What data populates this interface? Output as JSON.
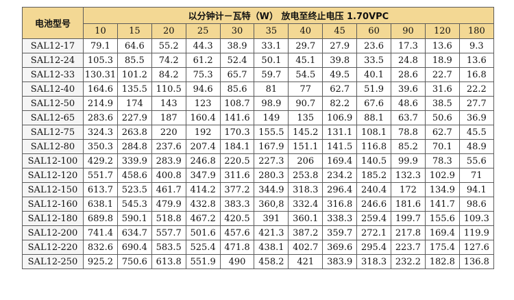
{
  "table": {
    "corner_label": "电池型号",
    "title": "以分钟计－瓦特（W）  放电至终止电压 1.70VPC",
    "minutes": [
      "10",
      "15",
      "20",
      "25",
      "30",
      "35",
      "40",
      "45",
      "60",
      "90",
      "120",
      "180"
    ],
    "rows": [
      {
        "model": "SAL12-17",
        "values": [
          "79.1",
          "64.6",
          "55.2",
          "44.3",
          "38.9",
          "33.1",
          "29.7",
          "27.9",
          "23.6",
          "17.3",
          "13.6",
          "9.3"
        ]
      },
      {
        "model": "SAL12-24",
        "values": [
          "105.3",
          "85.5",
          "74.2",
          "61.2",
          "52.4",
          "50.1",
          "45.1",
          "39.8",
          "33.5",
          "24.8",
          "18.9",
          "13.6"
        ]
      },
      {
        "model": "SAL12-33",
        "values": [
          "130.31",
          "101.2",
          "84.2",
          "75.3",
          "65.7",
          "59.7",
          "54.5",
          "49.5",
          "40.1",
          "28.6",
          "22.7",
          "16.8"
        ]
      },
      {
        "model": "SAL12-40",
        "values": [
          "164.6",
          "135.5",
          "110.5",
          "94.6",
          "85.6",
          "81",
          "77",
          "62.7",
          "51.9",
          "39.6",
          "31.6",
          "22.2"
        ]
      },
      {
        "model": "SAL12-50",
        "values": [
          "214.9",
          "174",
          "143",
          "123",
          "108.7",
          "98.9",
          "90.7",
          "82.2",
          "67.6",
          "48.6",
          "38.5",
          "27.7"
        ]
      },
      {
        "model": "SAL12-65",
        "values": [
          "283.6",
          "227.9",
          "187",
          "160.4",
          "141.6",
          "149",
          "135",
          "106.9",
          "88.1",
          "63.7",
          "50.6",
          "36.9"
        ]
      },
      {
        "model": "SAL12-75",
        "values": [
          "324.3",
          "263.8",
          "220",
          "192",
          "170.3",
          "155.5",
          "145.2",
          "131.1",
          "108.1",
          "78.8",
          "62.7",
          "45.5"
        ]
      },
      {
        "model": "SAL12-80",
        "values": [
          "350.3",
          "284.8",
          "237.6",
          "207.4",
          "184.1",
          "167.9",
          "151.1",
          "141.5",
          "116.8",
          "85.2",
          "70.1",
          "48.9"
        ]
      },
      {
        "model": "SAL12-100",
        "values": [
          "429.2",
          "339.9",
          "283.9",
          "246.8",
          "220.5",
          "227.3",
          "206",
          "169.4",
          "140.5",
          "99.9",
          "78.3",
          "55.6"
        ]
      },
      {
        "model": "SAL12-120",
        "values": [
          "551.7",
          "458.6",
          "400.8",
          "347.9",
          "311.6",
          "280.3",
          "253.8",
          "234.2",
          "185.2",
          "132.3",
          "102.9",
          "71"
        ]
      },
      {
        "model": "SAL12-150",
        "values": [
          "613.7",
          "523.5",
          "461.7",
          "414.2",
          "377.2",
          "344.9",
          "318.3",
          "296.4",
          "240.4",
          "172",
          "134.9",
          "94.1"
        ]
      },
      {
        "model": "SAL12-160",
        "values": [
          "638.1",
          "545.3",
          "479.9",
          "432.8",
          "383.3",
          "360,8",
          "332.4",
          "316.8",
          "246.6",
          "181.6",
          "141.7",
          "98.6"
        ]
      },
      {
        "model": "SAL12-180",
        "values": [
          "689.8",
          "590.1",
          "518.8",
          "467.2",
          "420.5",
          "391",
          "360.1",
          "338.3",
          "259.4",
          "199.7",
          "155.6",
          "109.3"
        ]
      },
      {
        "model": "SAL12-200",
        "values": [
          "741.4",
          "634.7",
          "557.7",
          "501.6",
          "457.6",
          "421.3",
          "387.2",
          "359.7",
          "272.1",
          "217.8",
          "169.4",
          "119.9"
        ]
      },
      {
        "model": "SAL12-220",
        "values": [
          "832.6",
          "690.4",
          "583.5",
          "525.4",
          "471.8",
          "438.1",
          "402.7",
          "369.6",
          "295.4",
          "223.7",
          "175.4",
          "127.6"
        ]
      },
      {
        "model": "SAL12-250",
        "values": [
          "925.2",
          "750.6",
          "613.8",
          "551.9",
          "490",
          "458.2",
          "421",
          "383.9",
          "318.3",
          "232.2",
          "182.8",
          "136.8"
        ]
      }
    ]
  }
}
